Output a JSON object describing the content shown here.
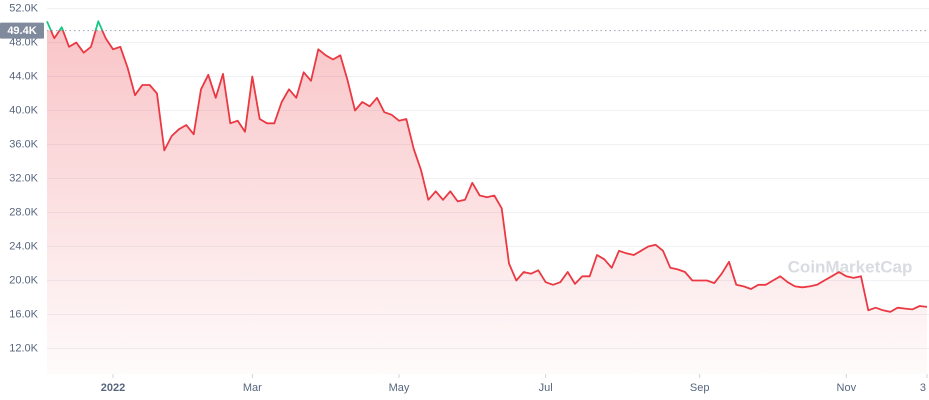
{
  "chart_data": {
    "type": "line",
    "watermark": "CoinMarketCap",
    "categories": [
      null,
      null,
      null,
      null,
      null,
      null,
      null,
      null,
      null,
      "2022",
      null,
      null,
      null,
      null,
      null,
      null,
      null,
      null,
      null,
      null,
      null,
      null,
      null,
      null,
      null,
      null,
      null,
      null,
      "Mar",
      null,
      null,
      null,
      null,
      null,
      null,
      null,
      null,
      null,
      null,
      null,
      null,
      null,
      null,
      null,
      null,
      null,
      null,
      null,
      "May",
      null,
      null,
      null,
      null,
      null,
      null,
      null,
      null,
      null,
      null,
      null,
      null,
      null,
      null,
      null,
      null,
      null,
      null,
      null,
      "Jul",
      null,
      null,
      null,
      null,
      null,
      null,
      null,
      null,
      null,
      null,
      null,
      null,
      null,
      null,
      null,
      null,
      null,
      null,
      null,
      null,
      "Sep",
      null,
      null,
      null,
      null,
      null,
      null,
      null,
      null,
      null,
      null,
      null,
      null,
      null,
      null,
      null,
      null,
      null,
      null,
      null,
      "Nov",
      null,
      null,
      null,
      null,
      null,
      null,
      null,
      null,
      null,
      null,
      "3"
    ],
    "values": [
      50500,
      48500,
      49800,
      47500,
      48000,
      46800,
      47500,
      50500,
      48500,
      47200,
      47500,
      45000,
      41800,
      43000,
      43000,
      42000,
      35300,
      37000,
      37800,
      38300,
      37200,
      42500,
      44200,
      41500,
      44300,
      38500,
      38800,
      37500,
      44000,
      39000,
      38500,
      38500,
      41000,
      42500,
      41500,
      44500,
      43500,
      47200,
      46500,
      46000,
      46500,
      43500,
      40000,
      41000,
      40500,
      41500,
      39800,
      39500,
      38800,
      39000,
      35500,
      33000,
      29500,
      30500,
      29500,
      30500,
      29300,
      29500,
      31500,
      30000,
      29800,
      30000,
      28500,
      22000,
      20000,
      21000,
      20800,
      21200,
      19800,
      19500,
      19800,
      21000,
      19600,
      20500,
      20500,
      23000,
      22500,
      21500,
      23500,
      23200,
      23000,
      23500,
      24000,
      24200,
      23500,
      21500,
      21300,
      21000,
      20000,
      20000,
      20000,
      19700,
      20800,
      22200,
      19500,
      19300,
      19000,
      19500,
      19500,
      20000,
      20500,
      19800,
      19300,
      19200,
      19300,
      19500,
      20000,
      20500,
      21000,
      20500,
      20300,
      20500,
      16500,
      16800,
      16500,
      16300,
      16800,
      16700,
      16600,
      17000,
      16900
    ],
    "baseline": {
      "value": 49400,
      "label": "49.4K"
    },
    "up_color": "#16c784",
    "down_color": "#ea3943",
    "ylim": [
      9000,
      53000
    ],
    "yticks": [
      {
        "value": 12000,
        "label": "12.0K"
      },
      {
        "value": 16000,
        "label": "16.0K"
      },
      {
        "value": 20000,
        "label": "20.0K"
      },
      {
        "value": 24000,
        "label": "24.0K"
      },
      {
        "value": 28000,
        "label": "28.0K"
      },
      {
        "value": 32000,
        "label": "32.0K"
      },
      {
        "value": 36000,
        "label": "36.0K"
      },
      {
        "value": 40000,
        "label": "40.0K"
      },
      {
        "value": 44000,
        "label": "44.0K"
      },
      {
        "value": 48000,
        "label": "48.0K"
      },
      {
        "value": 52000,
        "label": "52.0K"
      }
    ],
    "grid": true
  }
}
